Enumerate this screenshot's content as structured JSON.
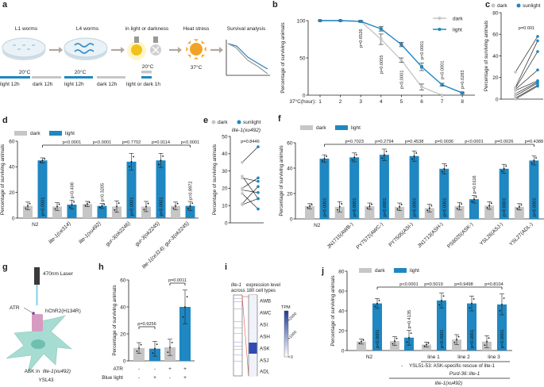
{
  "colors": {
    "dark": "#c6c6c6",
    "light": "#1f87c1",
    "axis": "#222222"
  },
  "panel_labels": [
    "a",
    "b",
    "c",
    "d",
    "e",
    "f",
    "g",
    "h",
    "i",
    "j"
  ],
  "panel_a": {
    "steps": [
      "L1 worms",
      "L4 worms",
      "in light or darkness",
      "Heat stress",
      "Survival analysis"
    ],
    "temps": [
      "20°C",
      "20°C",
      "20°C",
      "37°C"
    ],
    "timeline": [
      "light 12h",
      "dark 12h",
      "light 12h",
      "dark 12h",
      "light or dark 1h"
    ],
    "icons": [
      "petri-dish-icon",
      "worm-icon",
      "light-bulb-on-icon",
      "light-bulb-off-icon",
      "sun-icon",
      "survival-curve-icon",
      "arrow-right-icon"
    ]
  },
  "panel_g": {
    "laser": "470nm Laser",
    "atr": "ATR",
    "channel": "hChR2(H134R)",
    "cell_prefix": "ASK in ",
    "cell_gene": "lite-1(xu492)",
    "strain": "YSL43"
  },
  "chart_data": [
    {
      "panel": "b",
      "type": "line",
      "xlabel": "37°C(hour):",
      "ylabel": "Percentage of surviving animals",
      "x": [
        1,
        2,
        3,
        4,
        5,
        6,
        7,
        8
      ],
      "ylim": [
        0,
        100
      ],
      "yticks": [
        0,
        50,
        100
      ],
      "series": [
        {
          "name": "dark",
          "values": [
            100,
            100,
            99,
            75,
            47,
            11,
            0,
            null
          ],
          "error": [
            0,
            0,
            1,
            7,
            3,
            4,
            0,
            null
          ]
        },
        {
          "name": "light",
          "values": [
            100,
            100,
            99,
            89,
            68,
            38,
            14,
            3
          ],
          "error": [
            0,
            0,
            1,
            3,
            3,
            5,
            2,
            1
          ]
        }
      ],
      "annotations": [
        {
          "x": 3,
          "text": "p=0.6526"
        },
        {
          "x": 4,
          "text": "p=0.0055"
        },
        {
          "x": 5,
          "text": "p<0.0001"
        },
        {
          "x": 6,
          "text": "p<0.0001"
        },
        {
          "x": 7,
          "text": "p<0.0001"
        },
        {
          "x": 8,
          "text": "p=0.0283"
        }
      ],
      "legend": "top-right"
    },
    {
      "panel": "c",
      "type": "scatter",
      "ylabel": "Percentage of surviving animals",
      "ylim": [
        0,
        80
      ],
      "yticks": [
        0,
        20,
        40,
        60,
        80
      ],
      "legend_labels": [
        "dark",
        "sunlight"
      ],
      "pairs_dark": [
        25,
        11,
        10,
        9,
        8,
        5,
        3,
        1,
        0
      ],
      "pairs_sunlight": [
        58,
        54,
        44,
        27,
        17,
        16,
        15,
        13,
        12
      ],
      "annotation": "p=0.001"
    },
    {
      "panel": "d",
      "type": "bar",
      "ylabel": "Percentage of surviving animals",
      "ylim": [
        0,
        60
      ],
      "yticks": [
        0,
        20,
        40,
        60
      ],
      "categories": [
        "N2",
        "lite-1(ce314)",
        "lite-1(xu492)",
        "gur-3(ok2246)",
        "gur-3(ok2245)",
        "lite-1(ce314); gur-3(ok2245)"
      ],
      "series": [
        {
          "name": "dark",
          "values": [
            9.5,
            9,
            11,
            9,
            9,
            9.5
          ],
          "error": [
            3,
            3,
            2,
            4.5,
            4,
            3
          ]
        },
        {
          "name": "light",
          "values": [
            45,
            10.5,
            9.5,
            44,
            45,
            9.5
          ],
          "error": [
            2,
            3.5,
            2,
            6.5,
            5.5,
            3.5
          ]
        }
      ],
      "bar_pvalues": [
        "p<0.0001",
        "p=0.408",
        "p=0.3205",
        "p<0.0001",
        "p<0.0001",
        "p=0.8972"
      ],
      "comparison_pvalues": [
        "p<0.0001",
        "p<0.0001",
        "p=0.7702",
        "p=0.9114",
        "p<0.0001"
      ],
      "legend": "top-left"
    },
    {
      "panel": "e",
      "type": "scatter",
      "title": "lite-1(xu492)",
      "ylabel": "Percentage of surviving animals",
      "ylim": [
        0,
        50
      ],
      "yticks": [
        0,
        10,
        20,
        30,
        40,
        50
      ],
      "legend_labels": [
        "dark",
        "sunlight"
      ],
      "pairs_dark": [
        35,
        27,
        26,
        20,
        19,
        17,
        11,
        10.5
      ],
      "pairs_sunlight": [
        44,
        14,
        24,
        26,
        17.5,
        8,
        21,
        14
      ],
      "annotation": "p=0.8446"
    },
    {
      "panel": "f",
      "type": "bar",
      "ylabel": "Percentage of surviving animals",
      "ylim": [
        0,
        60
      ],
      "yticks": [
        0,
        20,
        40,
        60
      ],
      "categories": [
        "N2",
        "JN1715(AWB-)",
        "PY7572(AWC-)",
        "PY7505(ASI-)",
        "JN1713(ASH-)",
        "PS6025(ASK-)",
        "YSL26(ASJ-)",
        "YSL27(ADL-)"
      ],
      "series": [
        {
          "name": "dark",
          "values": [
            10,
            9.5,
            10,
            9.5,
            8.5,
            10,
            10.5,
            9.5
          ],
          "error": [
            2,
            4,
            2.5,
            3,
            3,
            3,
            3,
            2.5
          ]
        },
        {
          "name": "light",
          "values": [
            47.5,
            48.5,
            50.5,
            49.5,
            39.5,
            15.5,
            39.5,
            46
          ],
          "error": [
            3,
            3.5,
            4.5,
            4,
            4,
            3,
            3.5,
            3.5
          ]
        }
      ],
      "bar_pvalues": [
        "p<0.0001",
        "p<0.0001",
        "p<0.0001",
        "p<0.0001",
        "p<0.0001",
        "p=0.0116",
        "p<0.0001",
        "p<0.0001"
      ],
      "comparison_pvalues": [
        "p=0.7023",
        "p=0.2794",
        "p=0.4538",
        "p=0.0036",
        "p<0.0001",
        "p=0.0026",
        "p=0.4388"
      ],
      "legend": "top-left"
    },
    {
      "panel": "h",
      "type": "bar",
      "ylabel": "Percentage of surviving animals",
      "ylim": [
        0,
        60
      ],
      "yticks": [
        0,
        20,
        40,
        60
      ],
      "row_labels": [
        "ATR",
        "Blue light"
      ],
      "atr": [
        "-",
        "-",
        "+",
        "+"
      ],
      "blue_light": [
        "-",
        "+",
        "-",
        "+"
      ],
      "values": [
        9.5,
        9,
        10,
        40
      ],
      "error": [
        4,
        5.5,
        6,
        12.5
      ],
      "bar_colors": [
        "dark",
        "light",
        "dark",
        "light"
      ],
      "comparisons": [
        {
          "bars": [
            1,
            2
          ],
          "text": "p=0.9256"
        },
        {
          "bars": [
            3,
            4
          ],
          "text": "p=0.0011"
        }
      ]
    },
    {
      "panel": "i",
      "type": "heatmap",
      "title_gene": "lite-1",
      "title_rest": " expression level",
      "title_line2": "across 180 cell types",
      "rows": [
        "AWB",
        "AWC",
        "ASI",
        "ASH",
        "ASK",
        "ASJ",
        "ADL"
      ],
      "values": [
        60,
        60,
        60,
        60,
        2300,
        60,
        60
      ],
      "colorbar_label": "TPM",
      "colorbar_ticks": [
        0,
        1000,
        2000
      ],
      "colorbar_range": [
        0,
        2500
      ]
    },
    {
      "panel": "j",
      "type": "bar",
      "ylabel": "Percentage of surviving animals",
      "ylim": [
        0,
        80
      ],
      "yticks": [
        0,
        20,
        40,
        60,
        80
      ],
      "categories": [
        "N2",
        "-",
        "line 1",
        "line 2",
        "line 3"
      ],
      "series": [
        {
          "name": "dark",
          "values": [
            9,
            9.5,
            6,
            11,
            9
          ],
          "error": [
            2.5,
            4.5,
            2.5,
            5,
            6
          ]
        },
        {
          "name": "light",
          "values": [
            47.5,
            13,
            50.5,
            47.5,
            46.5
          ],
          "error": [
            5,
            7.5,
            7.5,
            7.5,
            10.5
          ]
        }
      ],
      "bar_pvalues": [
        "p<0.0001",
        "p=0.4135",
        "p<0.0001",
        "p<0.0001",
        "p<0.0001"
      ],
      "comparison_pvalues": [
        "p<0.0001",
        "p=0.5019",
        "p=0.9498",
        "p=0.8104"
      ],
      "group_label_1": "YSL51-53: ASK-specific rescue of lite-1",
      "group_label_2": "Psrd-36::lite-1",
      "group_label_3": "lite-1(xu492)",
      "legend": "top-left"
    }
  ]
}
